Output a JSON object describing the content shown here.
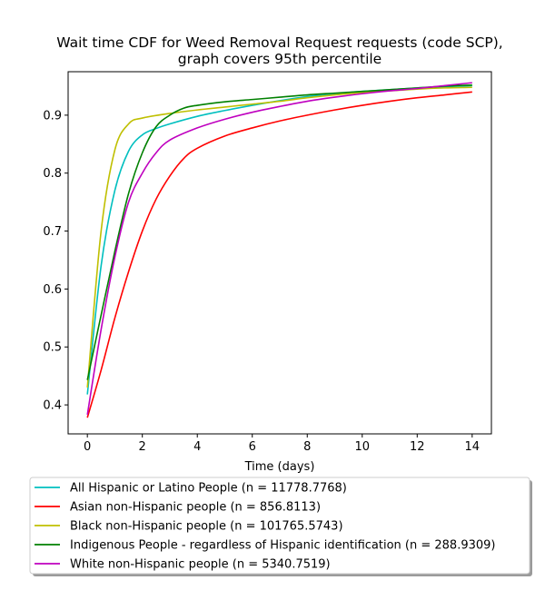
{
  "chart_data": {
    "type": "line",
    "title_lines": [
      "Wait time CDF for Weed Removal Request  requests (code SCP),",
      "graph covers 95th percentile"
    ],
    "xlabel": "Time (days)",
    "ylabel": "",
    "xlim": [
      -0.7,
      14.7
    ],
    "ylim": [
      0.35,
      0.975
    ],
    "xticks": [
      0,
      2,
      4,
      6,
      8,
      10,
      12,
      14
    ],
    "yticks": [
      0.4,
      0.5,
      0.6,
      0.7,
      0.8,
      0.9
    ],
    "grid": false,
    "legend_placement": "below plot",
    "series": [
      {
        "name": "All Hispanic or Latino People (n = 11778.7768)",
        "color": "#00bfbf",
        "points": [
          [
            0,
            0.418
          ],
          [
            0.5,
            0.64
          ],
          [
            1,
            0.77
          ],
          [
            1.5,
            0.838
          ],
          [
            2,
            0.866
          ],
          [
            2.5,
            0.877
          ],
          [
            3,
            0.885
          ],
          [
            4,
            0.898
          ],
          [
            5,
            0.908
          ],
          [
            6,
            0.917
          ],
          [
            7,
            0.925
          ],
          [
            8,
            0.932
          ],
          [
            9,
            0.937
          ],
          [
            10,
            0.941
          ],
          [
            11,
            0.944
          ],
          [
            12,
            0.947
          ],
          [
            13,
            0.949
          ],
          [
            14,
            0.951
          ]
        ]
      },
      {
        "name": "Asian non-Hispanic people (n = 856.8113)",
        "color": "#ff0000",
        "points": [
          [
            0,
            0.378
          ],
          [
            0.5,
            0.46
          ],
          [
            1,
            0.55
          ],
          [
            1.5,
            0.63
          ],
          [
            2,
            0.7
          ],
          [
            2.5,
            0.755
          ],
          [
            3,
            0.795
          ],
          [
            3.5,
            0.825
          ],
          [
            4,
            0.843
          ],
          [
            5,
            0.864
          ],
          [
            6,
            0.878
          ],
          [
            7,
            0.89
          ],
          [
            8,
            0.9
          ],
          [
            9,
            0.909
          ],
          [
            10,
            0.917
          ],
          [
            11,
            0.924
          ],
          [
            12,
            0.93
          ],
          [
            13,
            0.935
          ],
          [
            14,
            0.94
          ]
        ]
      },
      {
        "name": "Black non-Hispanic people (n = 101765.5743)",
        "color": "#bfbf00",
        "points": [
          [
            0,
            0.43
          ],
          [
            0.5,
            0.7
          ],
          [
            1,
            0.84
          ],
          [
            1.5,
            0.885
          ],
          [
            2,
            0.895
          ],
          [
            3,
            0.903
          ],
          [
            4,
            0.909
          ],
          [
            5,
            0.914
          ],
          [
            6,
            0.919
          ],
          [
            7,
            0.924
          ],
          [
            8,
            0.93
          ],
          [
            9,
            0.935
          ],
          [
            10,
            0.939
          ],
          [
            11,
            0.942
          ],
          [
            12,
            0.945
          ],
          [
            13,
            0.947
          ],
          [
            14,
            0.948
          ]
        ]
      },
      {
        "name": "Indigenous People - regardless of Hispanic identification (n = 288.9309)",
        "color": "#008000",
        "points": [
          [
            0,
            0.443
          ],
          [
            0.5,
            0.555
          ],
          [
            1,
            0.665
          ],
          [
            1.5,
            0.765
          ],
          [
            2,
            0.835
          ],
          [
            2.5,
            0.88
          ],
          [
            3,
            0.9
          ],
          [
            3.5,
            0.912
          ],
          [
            4,
            0.917
          ],
          [
            5,
            0.923
          ],
          [
            6,
            0.927
          ],
          [
            7,
            0.931
          ],
          [
            8,
            0.935
          ],
          [
            9,
            0.938
          ],
          [
            10,
            0.941
          ],
          [
            11,
            0.944
          ],
          [
            12,
            0.947
          ],
          [
            13,
            0.95
          ],
          [
            14,
            0.952
          ]
        ]
      },
      {
        "name": "White non-Hispanic people (n = 5340.7519)",
        "color": "#bf00bf",
        "points": [
          [
            0,
            0.383
          ],
          [
            0.5,
            0.53
          ],
          [
            1,
            0.655
          ],
          [
            1.5,
            0.75
          ],
          [
            2,
            0.8
          ],
          [
            2.5,
            0.835
          ],
          [
            3,
            0.857
          ],
          [
            4,
            0.878
          ],
          [
            5,
            0.893
          ],
          [
            6,
            0.905
          ],
          [
            7,
            0.915
          ],
          [
            8,
            0.924
          ],
          [
            9,
            0.931
          ],
          [
            10,
            0.937
          ],
          [
            11,
            0.942
          ],
          [
            12,
            0.946
          ],
          [
            13,
            0.951
          ],
          [
            14,
            0.956
          ]
        ]
      }
    ]
  }
}
